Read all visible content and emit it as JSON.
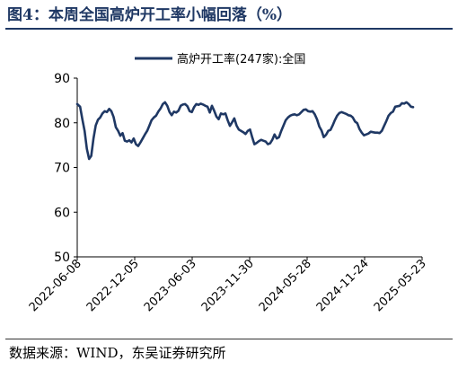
{
  "header": {
    "title": "图4：本周全国高炉开工率小幅回落（%）"
  },
  "footer": {
    "source": "数据来源：WIND，东吴证券研究所"
  },
  "colors": {
    "title": "#1f3864",
    "series": "#1f3864"
  },
  "chart_data": {
    "type": "line",
    "title": "",
    "xlabel": "",
    "ylabel": "",
    "ylim": [
      50,
      90
    ],
    "yticks": [
      "50",
      "60",
      "70",
      "80",
      "90"
    ],
    "x_ticks": [
      "2022-06-08",
      "2022-12-05",
      "2023-06-03",
      "2023-11-30",
      "2024-05-28",
      "2024-11-24",
      "2025-05-23"
    ],
    "legend_position": "top-center",
    "grid": false,
    "series": [
      {
        "name": "高炉开工率(247家):全国",
        "color": "#1f3864",
        "points": [
          [
            "2022-06-08",
            84.2
          ],
          [
            "2022-06-17",
            83.6
          ],
          [
            "2022-06-24",
            80.8
          ],
          [
            "2022-07-01",
            78.2
          ],
          [
            "2022-07-08",
            74.2
          ],
          [
            "2022-07-15",
            71.9
          ],
          [
            "2022-07-22",
            72.6
          ],
          [
            "2022-07-29",
            76.5
          ],
          [
            "2022-08-05",
            79.4
          ],
          [
            "2022-08-12",
            80.7
          ],
          [
            "2022-08-19",
            81.2
          ],
          [
            "2022-08-26",
            82.1
          ],
          [
            "2022-09-02",
            82.6
          ],
          [
            "2022-09-09",
            82.4
          ],
          [
            "2022-09-16",
            83.1
          ],
          [
            "2022-09-23",
            82.6
          ],
          [
            "2022-09-30",
            81.3
          ],
          [
            "2022-10-07",
            79.0
          ],
          [
            "2022-10-14",
            78.2
          ],
          [
            "2022-10-21",
            77.1
          ],
          [
            "2022-10-28",
            77.7
          ],
          [
            "2022-11-04",
            76.0
          ],
          [
            "2022-11-11",
            75.8
          ],
          [
            "2022-11-18",
            76.1
          ],
          [
            "2022-11-25",
            75.6
          ],
          [
            "2022-12-02",
            76.5
          ],
          [
            "2022-12-09",
            75.2
          ],
          [
            "2022-12-16",
            74.8
          ],
          [
            "2022-12-23",
            75.6
          ],
          [
            "2022-12-30",
            76.5
          ],
          [
            "2023-01-06",
            77.4
          ],
          [
            "2023-01-13",
            78.2
          ],
          [
            "2023-01-20",
            79.4
          ],
          [
            "2023-01-27",
            80.6
          ],
          [
            "2023-02-03",
            81.2
          ],
          [
            "2023-02-10",
            81.6
          ],
          [
            "2023-02-17",
            82.5
          ],
          [
            "2023-02-24",
            83.2
          ],
          [
            "2023-03-03",
            84.2
          ],
          [
            "2023-03-10",
            84.6
          ],
          [
            "2023-03-17",
            83.8
          ],
          [
            "2023-03-24",
            82.4
          ],
          [
            "2023-03-31",
            81.7
          ],
          [
            "2023-04-07",
            82.5
          ],
          [
            "2023-04-14",
            82.3
          ],
          [
            "2023-04-21",
            82.7
          ],
          [
            "2023-04-28",
            83.8
          ],
          [
            "2023-05-05",
            84.1
          ],
          [
            "2023-05-12",
            84.2
          ],
          [
            "2023-05-19",
            83.7
          ],
          [
            "2023-05-26",
            82.6
          ],
          [
            "2023-06-02",
            82.4
          ],
          [
            "2023-06-09",
            83.5
          ],
          [
            "2023-06-16",
            84.2
          ],
          [
            "2023-06-23",
            84.0
          ],
          [
            "2023-06-30",
            84.3
          ],
          [
            "2023-07-07",
            84.1
          ],
          [
            "2023-07-14",
            83.8
          ],
          [
            "2023-07-21",
            83.6
          ],
          [
            "2023-07-28",
            82.3
          ],
          [
            "2023-08-04",
            83.8
          ],
          [
            "2023-08-11",
            82.7
          ],
          [
            "2023-08-18",
            81.4
          ],
          [
            "2023-08-25",
            80.8
          ],
          [
            "2023-09-01",
            82.1
          ],
          [
            "2023-09-08",
            81.9
          ],
          [
            "2023-09-15",
            82.1
          ],
          [
            "2023-09-22",
            80.6
          ],
          [
            "2023-09-29",
            79.3
          ],
          [
            "2023-10-06",
            80.1
          ],
          [
            "2023-10-13",
            81.0
          ],
          [
            "2023-10-20",
            79.4
          ],
          [
            "2023-10-27",
            78.5
          ],
          [
            "2023-11-03",
            78.2
          ],
          [
            "2023-11-10",
            77.9
          ],
          [
            "2023-11-17",
            77.5
          ],
          [
            "2023-11-24",
            78.2
          ],
          [
            "2023-12-01",
            78.5
          ],
          [
            "2023-12-08",
            76.8
          ],
          [
            "2023-12-15",
            75.2
          ],
          [
            "2023-12-22",
            75.5
          ],
          [
            "2023-12-29",
            75.9
          ],
          [
            "2024-01-05",
            76.2
          ],
          [
            "2024-01-12",
            76.0
          ],
          [
            "2024-01-19",
            75.8
          ],
          [
            "2024-01-26",
            75.2
          ],
          [
            "2024-02-02",
            75.4
          ],
          [
            "2024-02-09",
            76.2
          ],
          [
            "2024-02-16",
            77.4
          ],
          [
            "2024-02-23",
            76.5
          ],
          [
            "2024-03-01",
            76.8
          ],
          [
            "2024-03-08",
            78.2
          ],
          [
            "2024-03-15",
            79.4
          ],
          [
            "2024-03-22",
            80.6
          ],
          [
            "2024-03-29",
            81.2
          ],
          [
            "2024-04-05",
            81.6
          ],
          [
            "2024-04-12",
            81.8
          ],
          [
            "2024-04-19",
            81.9
          ],
          [
            "2024-04-26",
            81.7
          ],
          [
            "2024-05-03",
            81.9
          ],
          [
            "2024-05-10",
            82.4
          ],
          [
            "2024-05-17",
            82.9
          ],
          [
            "2024-05-24",
            83.0
          ],
          [
            "2024-05-31",
            82.6
          ],
          [
            "2024-06-07",
            82.5
          ],
          [
            "2024-06-14",
            82.6
          ],
          [
            "2024-06-21",
            81.9
          ],
          [
            "2024-06-28",
            80.8
          ],
          [
            "2024-07-05",
            79.2
          ],
          [
            "2024-07-12",
            78.3
          ],
          [
            "2024-07-19",
            76.8
          ],
          [
            "2024-07-26",
            77.3
          ],
          [
            "2024-08-02",
            78.2
          ],
          [
            "2024-08-09",
            78.4
          ],
          [
            "2024-08-16",
            79.4
          ],
          [
            "2024-08-23",
            80.6
          ],
          [
            "2024-08-30",
            81.6
          ],
          [
            "2024-09-06",
            82.2
          ],
          [
            "2024-09-13",
            82.4
          ],
          [
            "2024-09-20",
            82.2
          ],
          [
            "2024-09-27",
            82.0
          ],
          [
            "2024-10-04",
            81.7
          ],
          [
            "2024-10-11",
            81.6
          ],
          [
            "2024-10-18",
            81.2
          ],
          [
            "2024-10-25",
            80.3
          ],
          [
            "2024-11-01",
            79.9
          ],
          [
            "2024-11-08",
            78.6
          ],
          [
            "2024-11-15",
            77.8
          ],
          [
            "2024-11-22",
            77.2
          ],
          [
            "2024-11-29",
            77.4
          ],
          [
            "2024-12-06",
            77.6
          ],
          [
            "2024-12-13",
            78.0
          ],
          [
            "2024-12-20",
            77.9
          ],
          [
            "2024-12-27",
            77.8
          ],
          [
            "2025-01-03",
            77.8
          ],
          [
            "2025-01-10",
            77.7
          ],
          [
            "2025-01-17",
            78.2
          ],
          [
            "2025-01-24",
            79.3
          ],
          [
            "2025-01-31",
            80.4
          ],
          [
            "2025-02-07",
            81.6
          ],
          [
            "2025-02-14",
            82.2
          ],
          [
            "2025-02-21",
            82.5
          ],
          [
            "2025-02-28",
            83.6
          ],
          [
            "2025-03-07",
            83.7
          ],
          [
            "2025-03-14",
            83.8
          ],
          [
            "2025-03-21",
            84.4
          ],
          [
            "2025-03-28",
            84.3
          ],
          [
            "2025-04-04",
            84.6
          ],
          [
            "2025-04-11",
            84.2
          ],
          [
            "2025-04-18",
            83.6
          ],
          [
            "2025-04-25",
            83.5
          ]
        ]
      }
    ]
  }
}
